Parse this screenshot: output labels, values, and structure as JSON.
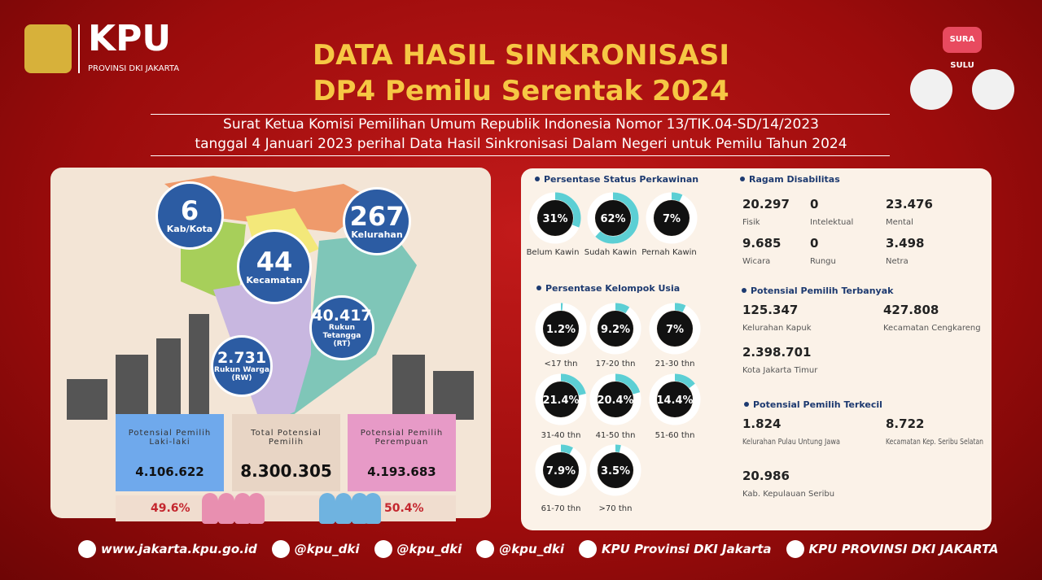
{
  "header": {
    "org": "KPU",
    "org_sub": "PROVINSI DKI JAKARTA",
    "mascot": "SURA SULU",
    "title_line1": "DATA HASIL SINKRONISASI",
    "title_line2": "DP4 Pemilu Serentak 2024",
    "subtitle_line1": "Surat Ketua Komisi Pemilihan Umum Republik Indonesia Nomor 13/TIK.04-SD/14/2023",
    "subtitle_line2": "tanggal 4 Januari 2023 perihal Data Hasil Sinkronisasi Dalam Negeri untuk Pemilu Tahun 2024"
  },
  "map": {
    "stats": [
      {
        "value": "6",
        "label": "Kab/Kota"
      },
      {
        "value": "267",
        "label": "Kelurahan"
      },
      {
        "value": "44",
        "label": "Kecamatan"
      },
      {
        "value": "40.417",
        "label": "Rukun Tetangga (RT)"
      },
      {
        "value": "2.731",
        "label": "Rukun Warga (RW)"
      }
    ]
  },
  "totals": [
    {
      "label": "Potensial Pemilih Laki-laki",
      "value": "4.106.622",
      "share": "49.6%"
    },
    {
      "label": "Total Potensial Pemilih",
      "value": "8.300.305"
    },
    {
      "label": "Potensial Pemilih Perempuan",
      "value": "4.193.683",
      "share": "50.4%"
    }
  ],
  "marital": {
    "title": "Persentase Status Perkawinan",
    "items": [
      {
        "label": "Belum Kawin",
        "pct": {
          "value": 31,
          "label": "31%"
        }
      },
      {
        "label": "Sudah Kawin",
        "pct": {
          "value": 62,
          "label": "62%"
        }
      },
      {
        "label": "Pernah Kawin",
        "pct": {
          "value": 7,
          "label": "7%"
        }
      }
    ]
  },
  "age": {
    "title": "Persentase Kelompok Usia",
    "items": [
      {
        "label": "<17 thn",
        "pct": {
          "value": 1.2,
          "label": "1.2%"
        }
      },
      {
        "label": "17-20 thn",
        "pct": {
          "value": 9.2,
          "label": "9.2%"
        }
      },
      {
        "label": "21-30 thn",
        "pct": {
          "value": 7,
          "label": "7%"
        }
      },
      {
        "label": "31-40 thn",
        "pct": {
          "value": 21.4,
          "label": "21.4%"
        }
      },
      {
        "label": "41-50 thn",
        "pct": {
          "value": 20.4,
          "label": "20.4%"
        }
      },
      {
        "label": "51-60 thn",
        "pct": {
          "value": 14.4,
          "label": "14.4%"
        }
      },
      {
        "label": "61-70 thn",
        "pct": {
          "value": 7.9,
          "label": "7.9%"
        }
      },
      {
        "label": ">70 thn",
        "pct": {
          "value": 3.5,
          "label": "3.5%"
        }
      }
    ]
  },
  "disability": {
    "title": "Ragam Disabilitas",
    "items": [
      {
        "value": "20.297",
        "label": "Fisik"
      },
      {
        "value": "0",
        "label": "Intelektual"
      },
      {
        "value": "23.476",
        "label": "Mental"
      },
      {
        "value": "9.685",
        "label": "Wicara"
      },
      {
        "value": "0",
        "label": "Rungu"
      },
      {
        "value": "3.498",
        "label": "Netra"
      }
    ]
  },
  "largest": {
    "title": "Potensial Pemilih Terbanyak",
    "items": [
      {
        "value": "125.347",
        "label": "Kelurahan Kapuk"
      },
      {
        "value": "427.808",
        "label": "Kecamatan Cengkareng"
      },
      {
        "value": "2.398.701",
        "label": "Kota Jakarta Timur"
      }
    ]
  },
  "smallest": {
    "title": "Potensial Pemilih Terkecil",
    "items": [
      {
        "value": "1.824",
        "label": "Kelurahan Pulau Untung Jawa"
      },
      {
        "value": "8.722",
        "label": "Kecamatan Kep. Seribu Selatan"
      },
      {
        "value": "20.986",
        "label": "Kab. Kepulauan Seribu"
      }
    ]
  },
  "footer": {
    "links": [
      "www.jakarta.kpu.go.id",
      "@kpu_dki",
      "@kpu_dki",
      "@kpu_dki",
      "KPU Provinsi DKI Jakarta",
      "KPU PROVINSI DKI JAKARTA"
    ]
  }
}
